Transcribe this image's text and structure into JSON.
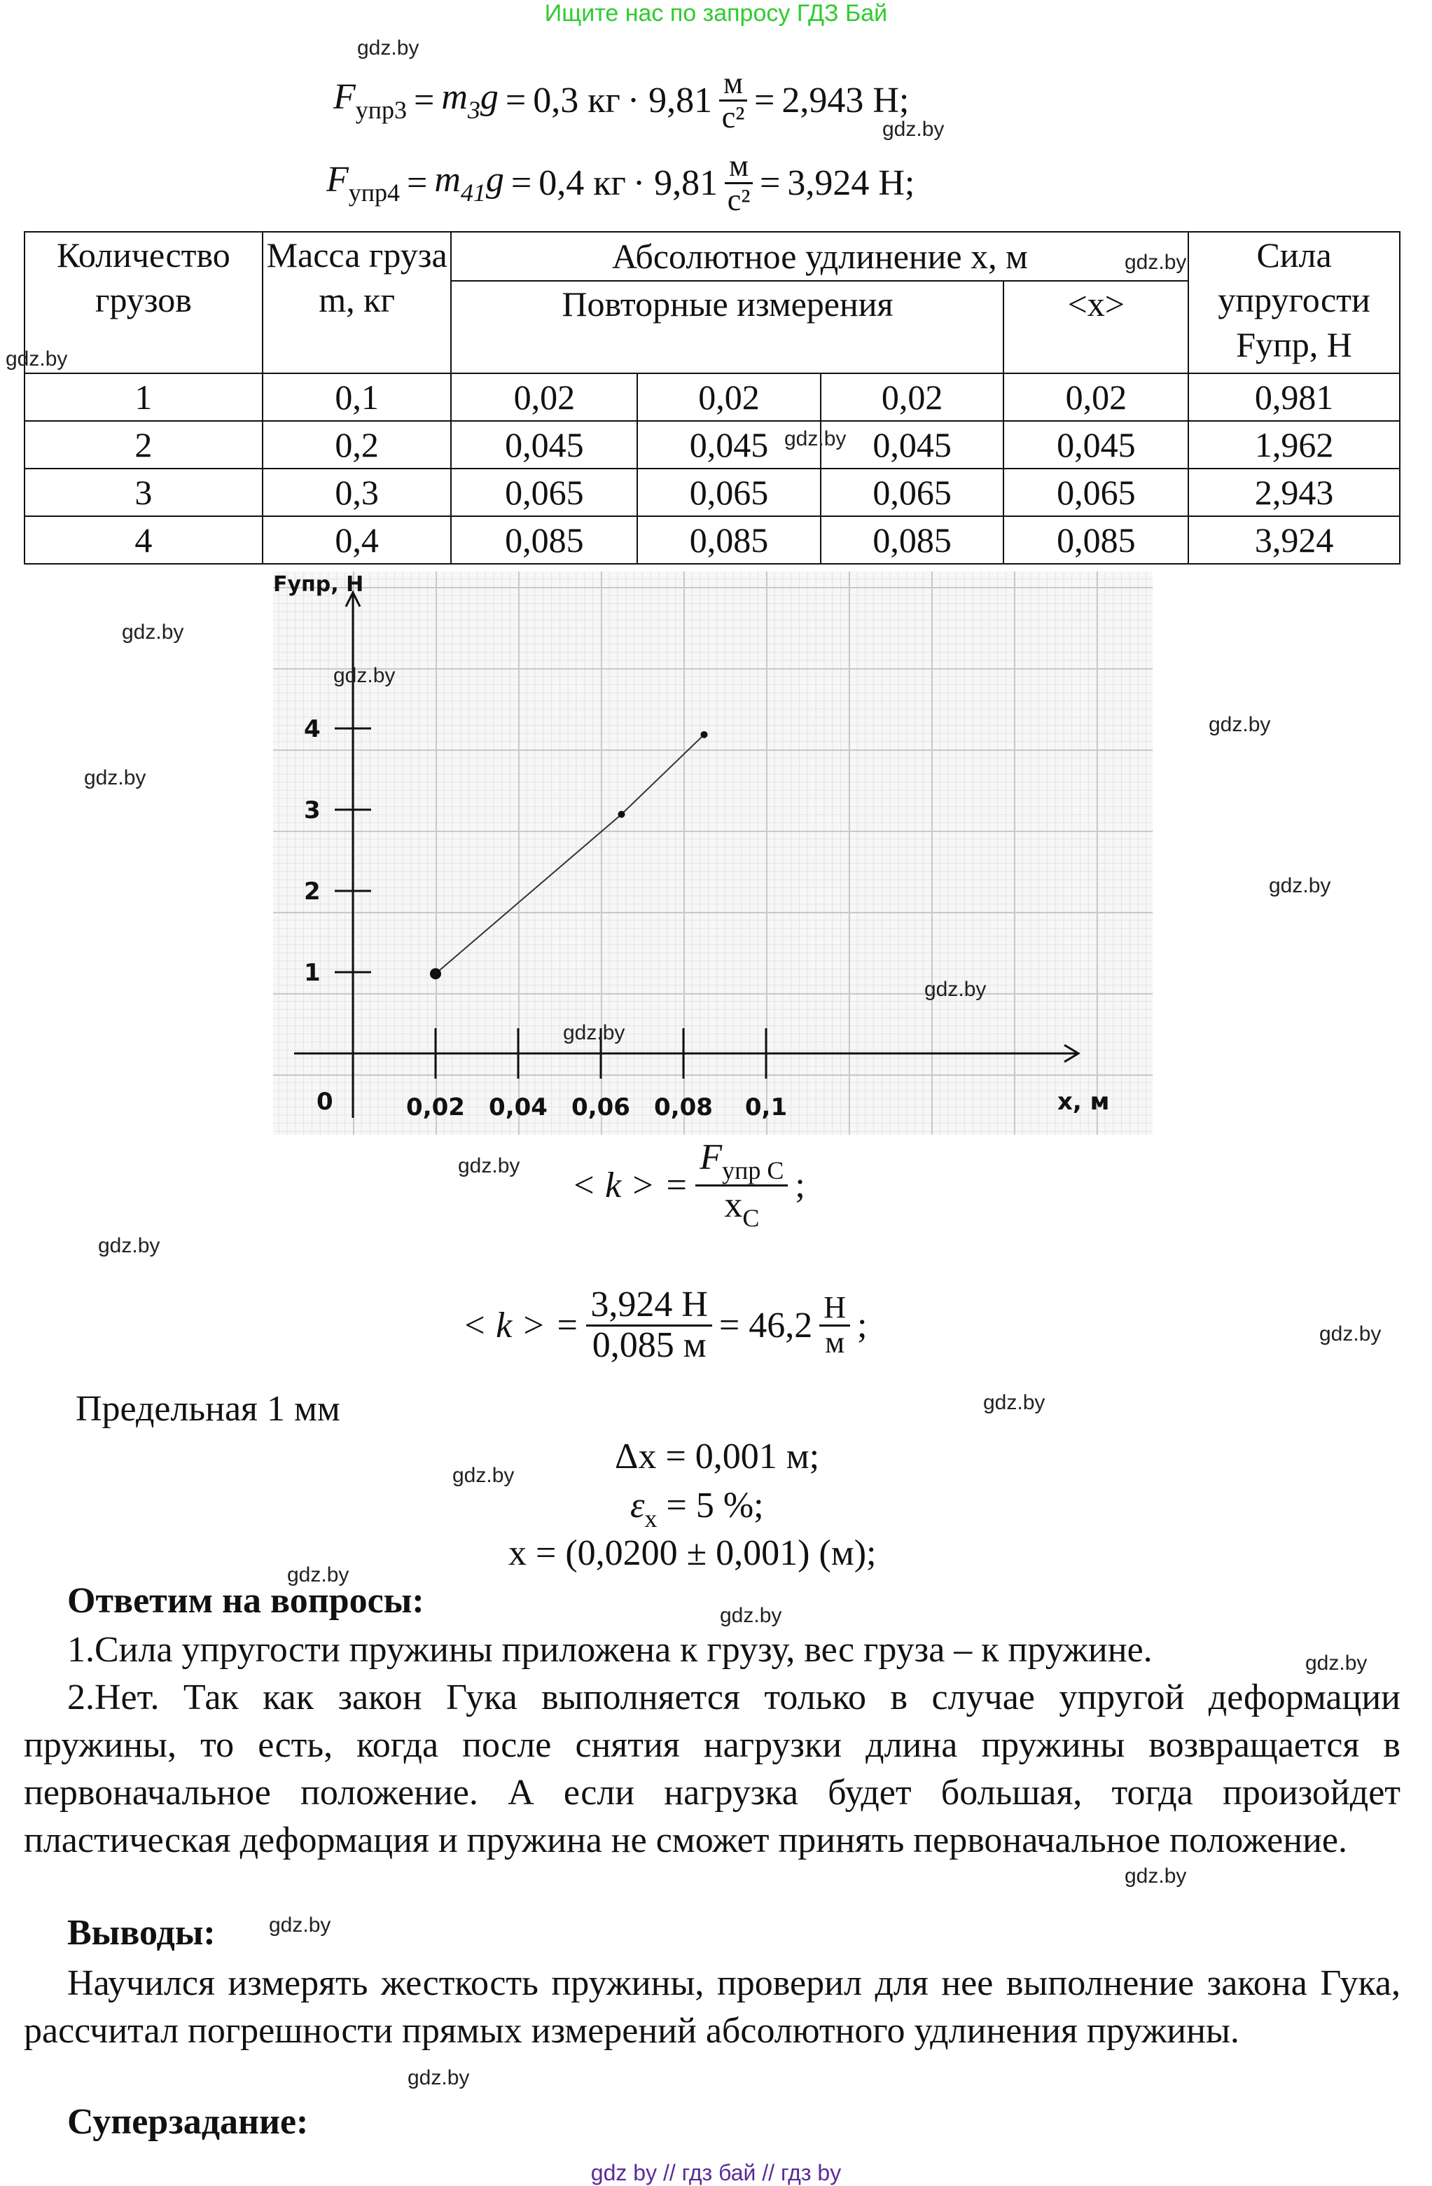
{
  "banner": "Ищите нас по запросу ГДЗ Бай",
  "formulas": {
    "f3": {
      "F": "F",
      "F_sub": "упр3",
      "m": "m",
      "m_sub": "3",
      "g": "g",
      "mass": "0,3 кг",
      "g_val": "· 9,81",
      "unit_num": "м",
      "unit_den": "с²",
      "result": "2,943 Н;"
    },
    "f4": {
      "F": "F",
      "F_sub": "упр4",
      "m": "m",
      "m_sub": "41",
      "g": "g",
      "mass": "0,4 кг",
      "g_val": "· 9,81",
      "unit_num": "м",
      "unit_den": "с²",
      "result": "3,924 Н;"
    },
    "k_def": {
      "lhs": "< k > =",
      "num": "F",
      "num_sub": "упр С",
      "den": "x",
      "den_sub": "С",
      "end": ";"
    },
    "k_val": {
      "lhs": "< k > =",
      "num": "3,924 Н",
      "den": "0,085 м",
      "eq": "= 46,2",
      "unit_num": "Н",
      "unit_den": "м",
      "end": ";"
    },
    "limit": "Предельная 1 мм",
    "dx": "Δx = 0,001 м;",
    "eps": {
      "sym": "ε",
      "sub": "x",
      "rest": "= 5 %;"
    },
    "x_result": "x = (0,0200 ± 0,001) (м);"
  },
  "table": {
    "headers": {
      "count": "Количество грузов",
      "mass": "Масса груза m, кг",
      "elong": "Абсолютное удлинение x, м",
      "repeated": "Повторные измерения",
      "mean": "<x>",
      "force": "Сила упругости Fупр, Н"
    },
    "rows": [
      [
        "1",
        "0,1",
        "0,02",
        "0,02",
        "0,02",
        "0,02",
        "0,981"
      ],
      [
        "2",
        "0,2",
        "0,045",
        "0,045",
        "0,045",
        "0,045",
        "1,962"
      ],
      [
        "3",
        "0,3",
        "0,065",
        "0,065",
        "0,065",
        "0,065",
        "2,943"
      ],
      [
        "4",
        "0,4",
        "0,085",
        "0,085",
        "0,085",
        "0,085",
        "3,924"
      ]
    ]
  },
  "chart_data": {
    "type": "line",
    "ylabel": "Fупр, Н",
    "xlabel": "x, м",
    "origin_label": "0",
    "x_ticks": [
      "0,02",
      "0,04",
      "0,06",
      "0,08",
      "0,1"
    ],
    "x_tick_values": [
      0.02,
      0.04,
      0.06,
      0.08,
      0.1
    ],
    "y_ticks": [
      "1",
      "2",
      "3",
      "4"
    ],
    "y_tick_values": [
      1,
      2,
      3,
      4
    ],
    "points": [
      {
        "x": 0.02,
        "y": 0.981
      },
      {
        "x": 0.065,
        "y": 2.943
      },
      {
        "x": 0.085,
        "y": 3.924
      }
    ],
    "grid": true,
    "background": "graph paper"
  },
  "answers": {
    "heading": "Ответим на вопросы:",
    "items": [
      "1.Сила упругости пружины приложена к грузу, вес груза – к пружине.",
      "2.Нет. Так как закон Гука выполняется только в случае упругой деформации пружины, то есть, когда после снятия нагрузки длина пружины возвращается в первоначальное положение. А если нагрузка будет большая, тогда произойдет пластическая деформация и пружина не сможет принять первоначальное положение."
    ]
  },
  "conclusions": {
    "heading": "Выводы:",
    "text": "Научился измерять жесткость пружины, проверил для нее выполнение закона Гука, рассчитал погрешности прямых измерений абсолютного удлинения пружины."
  },
  "super_task": {
    "heading": "Суперзадание:"
  },
  "watermarks": [
    "gdz.by",
    "gdz.by",
    "gdz.by",
    "gdz.by",
    "gdz.by",
    "gdz.by",
    "gdz.by",
    "gdz.by",
    "gdz.by",
    "gdz.by",
    "gdz.by",
    "gdz.by",
    "gdz.by",
    "gdz.by",
    "gdz.by",
    "gdz.by",
    "gdz.by",
    "gdz.by",
    "gdz.by",
    "gdz.by",
    "gdz.by",
    "gdz.by",
    "gdz.by"
  ],
  "footer": "gdz by  //  гдз бай  //  гдз by",
  "colors": {
    "banner": "#2ecc2e",
    "footer": "#5b2a9a"
  }
}
